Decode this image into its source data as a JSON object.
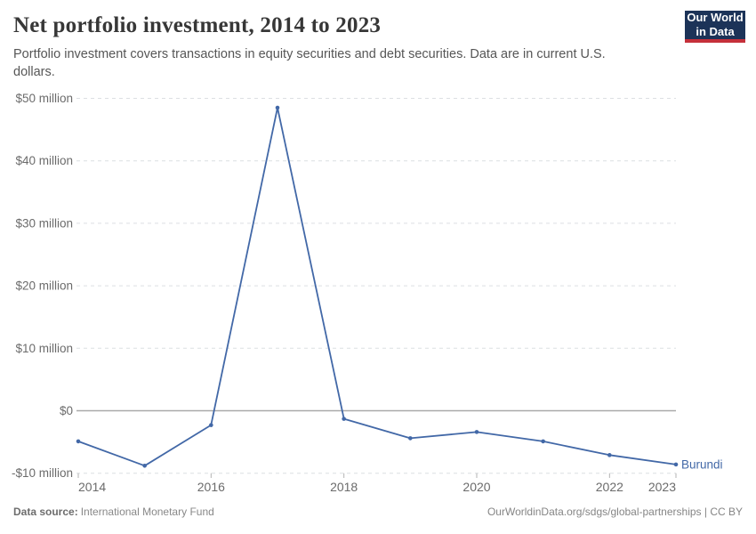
{
  "header": {
    "title": "Net portfolio investment, 2014 to 2023",
    "subtitle": "Portfolio investment covers transactions in equity securities and debt securities. Data are in current U.S. dollars.",
    "logo": {
      "line1": "Our World",
      "line2": "in Data"
    }
  },
  "footer": {
    "source_label": "Data source:",
    "source_value": "International Monetary Fund",
    "credit": "OurWorldinData.org/sdgs/global-partnerships | CC BY"
  },
  "colors": {
    "series_blue": "#4268a7",
    "logo_navy": "#1c3358",
    "logo_red": "#c5303a",
    "grid_gray": "#dcdfe2",
    "zero_line_gray": "#a9a9a9",
    "tick_text_gray": "#6b6b6b"
  },
  "chart_data": {
    "type": "line",
    "title": "Net portfolio investment, 2014 to 2023",
    "unit": "current US$ (millions)",
    "x": [
      2014,
      2015,
      2016,
      2017,
      2018,
      2019,
      2020,
      2021,
      2022,
      2023
    ],
    "series": [
      {
        "name": "Burundi",
        "color": "#4268a7",
        "values": [
          -4.9,
          -8.8,
          -2.3,
          48.5,
          -1.3,
          -4.4,
          -3.4,
          -4.9,
          -7.1,
          -8.6
        ]
      }
    ],
    "xlabel": "",
    "ylabel": "",
    "ylim": [
      -10,
      50
    ],
    "xlim": [
      2014,
      2023
    ],
    "yticks": [
      {
        "value": 50,
        "label": "$50 million"
      },
      {
        "value": 40,
        "label": "$40 million"
      },
      {
        "value": 30,
        "label": "$30 million"
      },
      {
        "value": 20,
        "label": "$20 million"
      },
      {
        "value": 10,
        "label": "$10 million"
      },
      {
        "value": 0,
        "label": "$0"
      },
      {
        "value": -10,
        "label": "-$10 million"
      }
    ],
    "xticks": [
      2014,
      2016,
      2018,
      2020,
      2022,
      2023
    ],
    "grid": "horizontal-dashed",
    "zero_line": "solid",
    "legend_position": "end-of-line-label",
    "end_label": "Burundi",
    "markers": "dots"
  }
}
